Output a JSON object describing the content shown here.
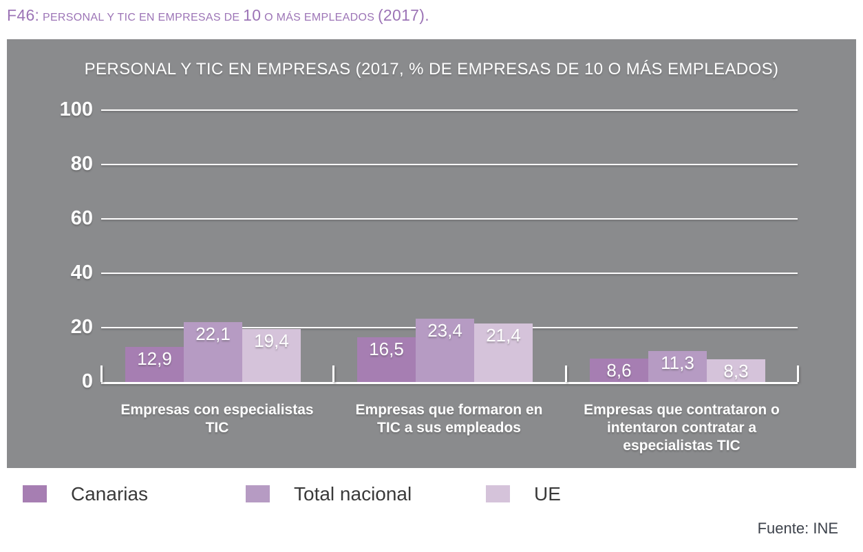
{
  "caption": {
    "prefix": "F46:",
    "small1": "PERSONAL Y TIC EN EMPRESAS DE",
    "big1": "10",
    "small2": "O MÁS EMPLEADOS",
    "big2": "(2017)."
  },
  "chart_data": {
    "type": "bar",
    "title": "PERSONAL Y TIC EN EMPRESAS (2017, % DE EMPRESAS DE 10 O MÁS EMPLEADOS)",
    "categories": [
      "Empresas con especialistas TIC",
      "Empresas que formaron en TIC a sus empleados",
      "Empresas que contrataron o intentaron contratar a especialistas TIC"
    ],
    "series": [
      {
        "name": "Canarias",
        "color": "#a67eb2",
        "values": [
          12.9,
          16.5,
          8.6
        ]
      },
      {
        "name": "Total nacional",
        "color": "#b69bc3",
        "values": [
          22.1,
          23.4,
          11.3
        ]
      },
      {
        "name": "UE",
        "color": "#d5c3da",
        "values": [
          19.4,
          21.4,
          8.3
        ]
      }
    ],
    "value_labels": [
      [
        "12,9",
        "16,5",
        "8,6"
      ],
      [
        "22,1",
        "23,4",
        "11,3"
      ],
      [
        "19,4",
        "21,4",
        "8,3"
      ]
    ],
    "ylabel": "",
    "xlabel": "",
    "ylim": [
      0,
      100
    ],
    "yticks": [
      0,
      20,
      40,
      60,
      80,
      100
    ],
    "decimal_separator": ",",
    "grid": true,
    "legend_position": "bottom",
    "colors": {
      "panel_background": "#8a8b8d",
      "caption_text": "#9c74b6",
      "axis_text": "#ffffff",
      "legend_text": "#3a3a3a"
    }
  },
  "source": "Fuente: INE"
}
